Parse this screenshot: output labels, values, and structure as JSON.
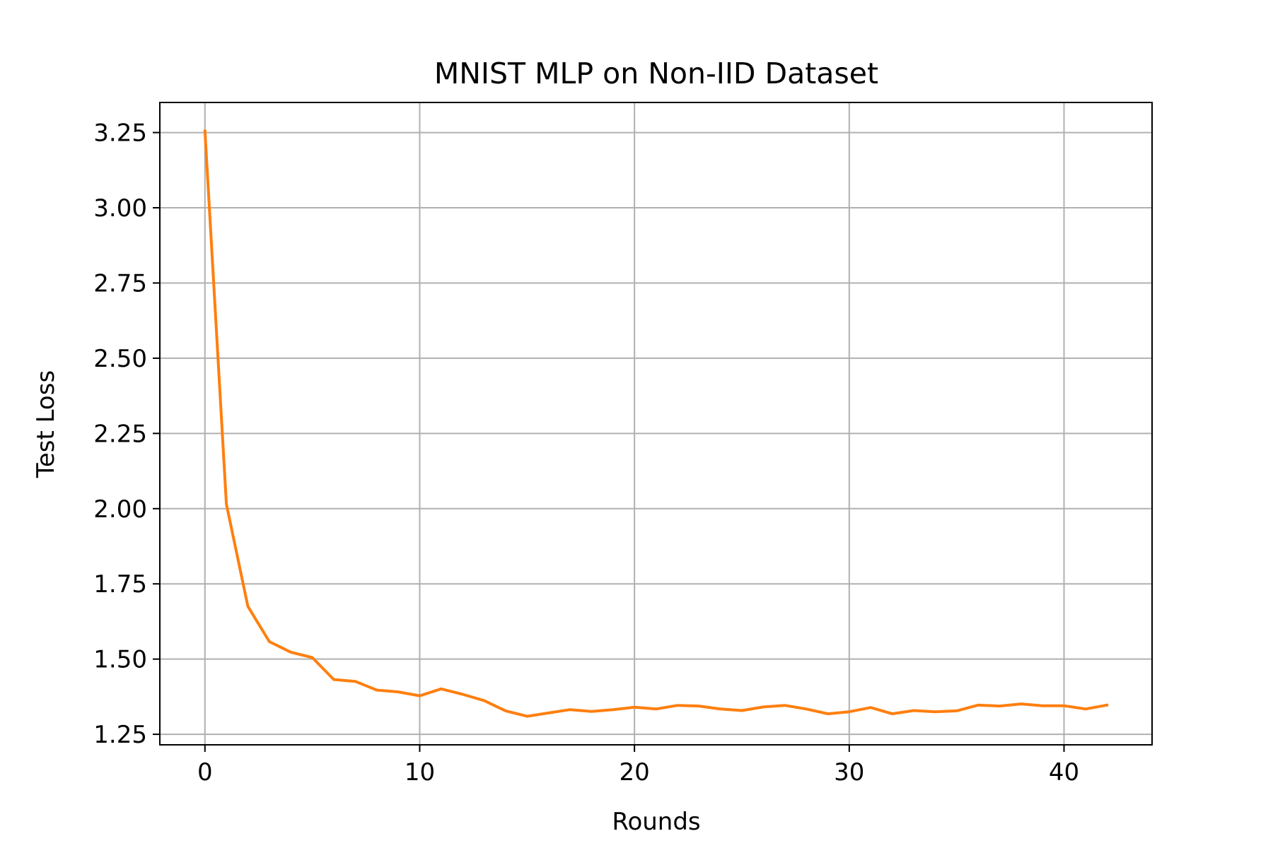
{
  "chart_data": {
    "type": "line",
    "title": "MNIST MLP on Non-IID Dataset",
    "xlabel": "Rounds",
    "ylabel": "Test Loss",
    "xlim": [
      -2.1,
      44.1
    ],
    "ylim": [
      1.215,
      3.35
    ],
    "x_ticks": [
      0,
      10,
      20,
      30,
      40
    ],
    "x_tick_labels": [
      "0",
      "10",
      "20",
      "30",
      "40"
    ],
    "y_ticks": [
      1.25,
      1.5,
      1.75,
      2.0,
      2.25,
      2.5,
      2.75,
      3.0,
      3.25
    ],
    "y_tick_labels": [
      "1.25",
      "1.50",
      "1.75",
      "2.00",
      "2.25",
      "2.50",
      "2.75",
      "3.00",
      "3.25"
    ],
    "grid": true,
    "legend": "none",
    "series": [
      {
        "color": "#ff7f0e",
        "x": [
          0,
          1,
          2,
          3,
          4,
          5,
          6,
          7,
          8,
          9,
          10,
          11,
          12,
          13,
          14,
          15,
          16,
          17,
          18,
          19,
          20,
          21,
          22,
          23,
          24,
          25,
          26,
          27,
          28,
          29,
          30,
          31,
          32,
          33,
          34,
          35,
          36,
          37,
          38,
          39,
          40,
          41,
          42
        ],
        "values": [
          3.255,
          2.015,
          1.675,
          1.558,
          1.523,
          1.505,
          1.432,
          1.426,
          1.397,
          1.391,
          1.378,
          1.401,
          1.383,
          1.362,
          1.328,
          1.31,
          1.321,
          1.332,
          1.326,
          1.332,
          1.34,
          1.334,
          1.346,
          1.344,
          1.334,
          1.329,
          1.341,
          1.346,
          1.334,
          1.318,
          1.325,
          1.339,
          1.318,
          1.329,
          1.325,
          1.328,
          1.347,
          1.344,
          1.351,
          1.345,
          1.345,
          1.334,
          1.347
        ]
      }
    ]
  }
}
